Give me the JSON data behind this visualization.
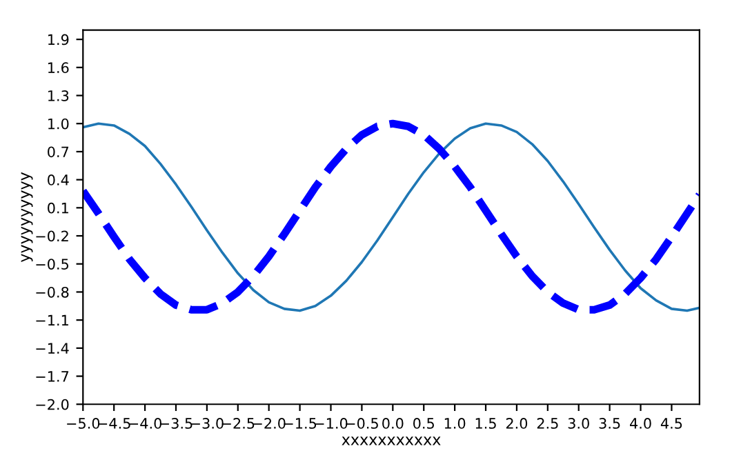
{
  "chart_data": {
    "type": "line",
    "xlabel": "xxxxxxxxxxx",
    "ylabel": "yyyyyyyyyy",
    "x": [
      -5,
      -4.75,
      -4.5,
      -4.25,
      -4,
      -3.75,
      -3.5,
      -3.25,
      -3,
      -2.75,
      -2.5,
      -2.25,
      -2,
      -1.75,
      -1.5,
      -1.25,
      -1,
      -0.75,
      -0.5,
      -0.25,
      0,
      0.25,
      0.5,
      0.75,
      1,
      1.25,
      1.5,
      1.75,
      2,
      2.25,
      2.5,
      2.75,
      3,
      3.25,
      3.5,
      3.75,
      4,
      4.25,
      4.5,
      4.75,
      4.95
    ],
    "series": [
      {
        "color": "#1f77b4",
        "line_style": "solid",
        "values": [
          0.96,
          1.0,
          0.98,
          0.89,
          0.76,
          0.57,
          0.35,
          0.11,
          -0.14,
          -0.38,
          -0.6,
          -0.78,
          -0.91,
          -0.98,
          -1.0,
          -0.95,
          -0.84,
          -0.68,
          -0.48,
          -0.25,
          0.0,
          0.25,
          0.48,
          0.68,
          0.84,
          0.95,
          1.0,
          0.98,
          0.91,
          0.78,
          0.6,
          0.38,
          0.14,
          -0.11,
          -0.35,
          -0.57,
          -0.76,
          -0.89,
          -0.98,
          -1.0,
          -0.97
        ]
      },
      {
        "color": "#0000ff",
        "line_style": "dashed",
        "values": [
          0.28,
          0.04,
          -0.21,
          -0.45,
          -0.65,
          -0.82,
          -0.94,
          -0.99,
          -0.99,
          -0.92,
          -0.8,
          -0.63,
          -0.42,
          -0.18,
          0.07,
          0.32,
          0.54,
          0.73,
          0.88,
          0.97,
          1.0,
          0.97,
          0.88,
          0.73,
          0.54,
          0.32,
          0.07,
          -0.18,
          -0.42,
          -0.63,
          -0.8,
          -0.92,
          -0.99,
          -0.99,
          -0.94,
          -0.82,
          -0.65,
          -0.45,
          -0.21,
          0.04,
          0.24
        ]
      }
    ],
    "xlim": [
      -5,
      4.95
    ],
    "xticks": [
      {
        "value": -5,
        "label": "−5.0"
      },
      -4.5,
      {
        "value": -4,
        "label": "−4.0"
      },
      -3.5,
      {
        "value": -3,
        "label": "−3.0"
      },
      -2.5,
      {
        "value": -2,
        "label": "−2.0"
      },
      -1.5,
      {
        "value": -1,
        "label": "−1.0"
      },
      -0.5,
      {
        "value": 0,
        "label": "0.0"
      },
      0.5,
      {
        "value": 1,
        "label": "1.0"
      },
      1.5,
      {
        "value": 2,
        "label": "2.0"
      },
      2.5,
      {
        "value": 3,
        "label": "3.0"
      },
      3.5,
      {
        "value": 4,
        "label": "4.0"
      },
      4.5
    ],
    "ylim": [
      -2,
      2
    ],
    "yticks": [
      {
        "value": -2,
        "label": "−2.0"
      },
      -1.7,
      -1.4,
      -1.1,
      -0.8,
      -0.5,
      -0.2,
      0.1,
      0.4,
      0.7,
      {
        "value": 1,
        "label": "1.0"
      },
      1.3,
      1.6,
      1.9
    ],
    "grid": false,
    "legend": false
  }
}
